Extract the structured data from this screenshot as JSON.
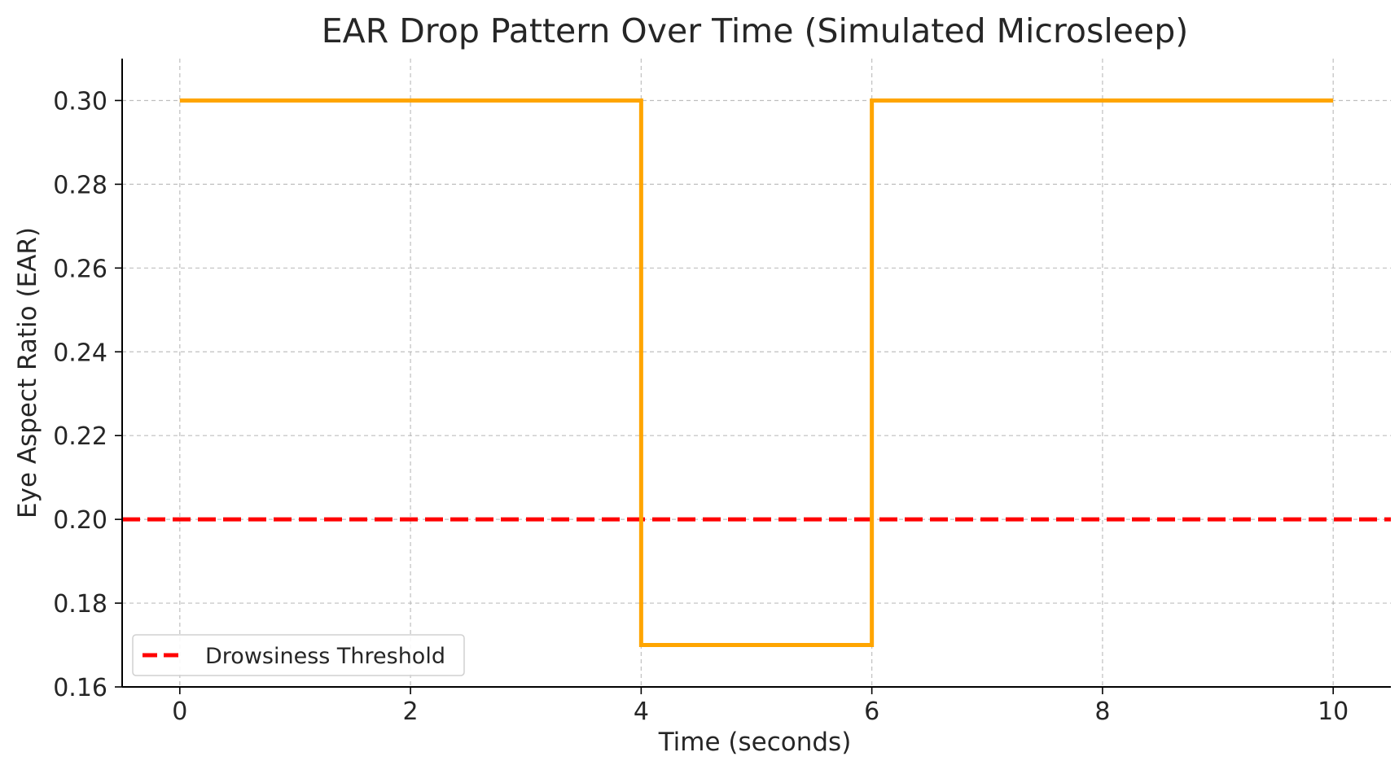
{
  "chart_data": {
    "type": "line",
    "title": "EAR Drop Pattern Over Time (Simulated Microsleep)",
    "xlabel": "Time (seconds)",
    "ylabel": "Eye Aspect Ratio (EAR)",
    "xlim": [
      -0.5,
      10.5
    ],
    "ylim": [
      0.16,
      0.31
    ],
    "xticks": [
      0,
      2,
      4,
      6,
      8,
      10
    ],
    "xtick_labels": [
      "0",
      "2",
      "4",
      "6",
      "8",
      "10"
    ],
    "yticks": [
      0.16,
      0.18,
      0.2,
      0.22,
      0.24,
      0.26,
      0.28,
      0.3
    ],
    "ytick_labels": [
      "0.16",
      "0.18",
      "0.20",
      "0.22",
      "0.24",
      "0.26",
      "0.28",
      "0.30"
    ],
    "grid": true,
    "series": [
      {
        "x": [
          0,
          4,
          4,
          6,
          6,
          10
        ],
        "y": [
          0.3,
          0.3,
          0.17,
          0.17,
          0.3,
          0.3
        ],
        "color": "#FFA500",
        "style": "solid",
        "in_legend": false
      }
    ],
    "reference_lines": [
      {
        "orientation": "horizontal",
        "y": 0.2,
        "name": "Drowsiness Threshold",
        "color": "#FF0000",
        "style": "dashed"
      }
    ],
    "legend": {
      "placement": "lower-left",
      "entries": [
        "Drowsiness Threshold"
      ]
    }
  }
}
